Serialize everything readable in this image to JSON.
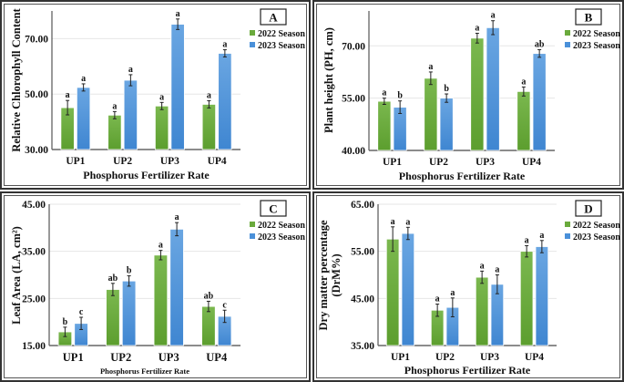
{
  "colors": {
    "season_2022": "#6aaa3c",
    "season_2023": "#4a90d9",
    "grid": "#e6e6e6",
    "axis": "#333333"
  },
  "chart_data": [
    {
      "panel": "A",
      "type": "bar",
      "title": "",
      "panel_label": "A",
      "xlabel": "Phosphorus Fertilizer Rate",
      "ylabel": "Relative Chlorophyll Content",
      "categories": [
        "UP1",
        "UP2",
        "UP3",
        "UP4"
      ],
      "ylim": [
        30,
        80
      ],
      "yticks": [
        30,
        50,
        70
      ],
      "ytick_labels": [
        "30.00",
        "50.00",
        "70.00"
      ],
      "grid": true,
      "legend": {
        "placement": "top-right",
        "entries": [
          "2022 Season",
          "2023 Season"
        ]
      },
      "series": [
        {
          "name": "2022 Season",
          "values": [
            45.1,
            42.4,
            45.7,
            46.3
          ],
          "errors": [
            2.6,
            1.3,
            1.3,
            1.3
          ],
          "letters": [
            "a",
            "a",
            "a",
            "a"
          ]
        },
        {
          "name": "2023 Season",
          "values": [
            52.4,
            55.0,
            75.2,
            64.7
          ],
          "errors": [
            1.3,
            2.0,
            1.9,
            1.3
          ],
          "letters": [
            "a",
            "a",
            "a",
            "a"
          ]
        }
      ]
    },
    {
      "panel": "B",
      "type": "bar",
      "title": "",
      "panel_label": "B",
      "xlabel": "Phosphorus Fertilizer Rate",
      "ylabel": "Plant height (PH, cm)",
      "categories": [
        "UP1",
        "UP2",
        "UP3",
        "UP4"
      ],
      "ylim": [
        40,
        80
      ],
      "yticks": [
        40,
        55,
        70
      ],
      "ytick_labels": [
        "40.00",
        "55.00",
        "70.00"
      ],
      "grid": true,
      "legend": {
        "placement": "top-right",
        "entries": [
          "2022 Season",
          "2023 Season"
        ]
      },
      "series": [
        {
          "name": "2022 Season",
          "values": [
            54.1,
            60.7,
            72.2,
            56.9
          ],
          "errors": [
            0.9,
            1.8,
            1.4,
            1.3
          ],
          "letters": [
            "a",
            "a",
            "a",
            "a"
          ]
        },
        {
          "name": "2023 Season",
          "values": [
            52.4,
            55.0,
            75.2,
            67.8
          ],
          "errors": [
            1.8,
            1.2,
            2.0,
            1.1
          ],
          "letters": [
            "b",
            "b",
            "a",
            "ab"
          ]
        }
      ]
    },
    {
      "panel": "C",
      "type": "bar",
      "title": "",
      "panel_label": "C",
      "xlabel": "Phosphorus Fertilizer Rate",
      "ylabel": "Leaf Area (LA, cm²)",
      "categories": [
        "UP1",
        "UP2",
        "UP3",
        "UP4"
      ],
      "ylim": [
        15,
        45
      ],
      "yticks": [
        15,
        25,
        35,
        45
      ],
      "ytick_labels": [
        "15.00",
        "25.00",
        "35.00",
        "45.00"
      ],
      "grid": true,
      "legend": {
        "placement": "top-right",
        "entries": [
          "2022 Season",
          "2023 Season"
        ]
      },
      "series": [
        {
          "name": "2022 Season",
          "values": [
            17.9,
            26.9,
            34.2,
            23.3
          ],
          "errors": [
            1.0,
            1.3,
            1.0,
            1.1
          ],
          "letters": [
            "b",
            "ab",
            "a",
            "ab"
          ]
        },
        {
          "name": "2023 Season",
          "values": [
            19.7,
            28.7,
            39.7,
            21.2
          ],
          "errors": [
            1.3,
            1.1,
            1.4,
            1.3
          ],
          "letters": [
            "c",
            "b",
            "a",
            "c"
          ]
        }
      ]
    },
    {
      "panel": "D",
      "type": "bar",
      "title": "",
      "panel_label": "D",
      "xlabel": "Phosphorus Fertilizer Rate",
      "ylabel": "Dry matter percentage (DrM%)",
      "ylabel_lines": [
        "Dry matter percentage",
        "(DrM%)"
      ],
      "categories": [
        "UP1",
        "UP2",
        "UP3",
        "UP4"
      ],
      "ylim": [
        35,
        65
      ],
      "yticks": [
        35,
        45,
        55,
        65
      ],
      "ytick_labels": [
        "35.00",
        "45.00",
        "55.00",
        "65.00"
      ],
      "grid": true,
      "legend": {
        "placement": "top-right",
        "entries": [
          "2022 Season",
          "2023 Season"
        ]
      },
      "series": [
        {
          "name": "2022 Season",
          "values": [
            57.6,
            42.5,
            49.5,
            55.0
          ],
          "errors": [
            2.6,
            1.3,
            1.3,
            1.2
          ],
          "letters": [
            "a",
            "a",
            "a",
            "a"
          ]
        },
        {
          "name": "2023 Season",
          "values": [
            58.8,
            43.1,
            48.0,
            56.0
          ],
          "errors": [
            1.3,
            2.0,
            2.0,
            1.3
          ],
          "letters": [
            "a",
            "a",
            "a",
            "a"
          ]
        }
      ]
    }
  ]
}
